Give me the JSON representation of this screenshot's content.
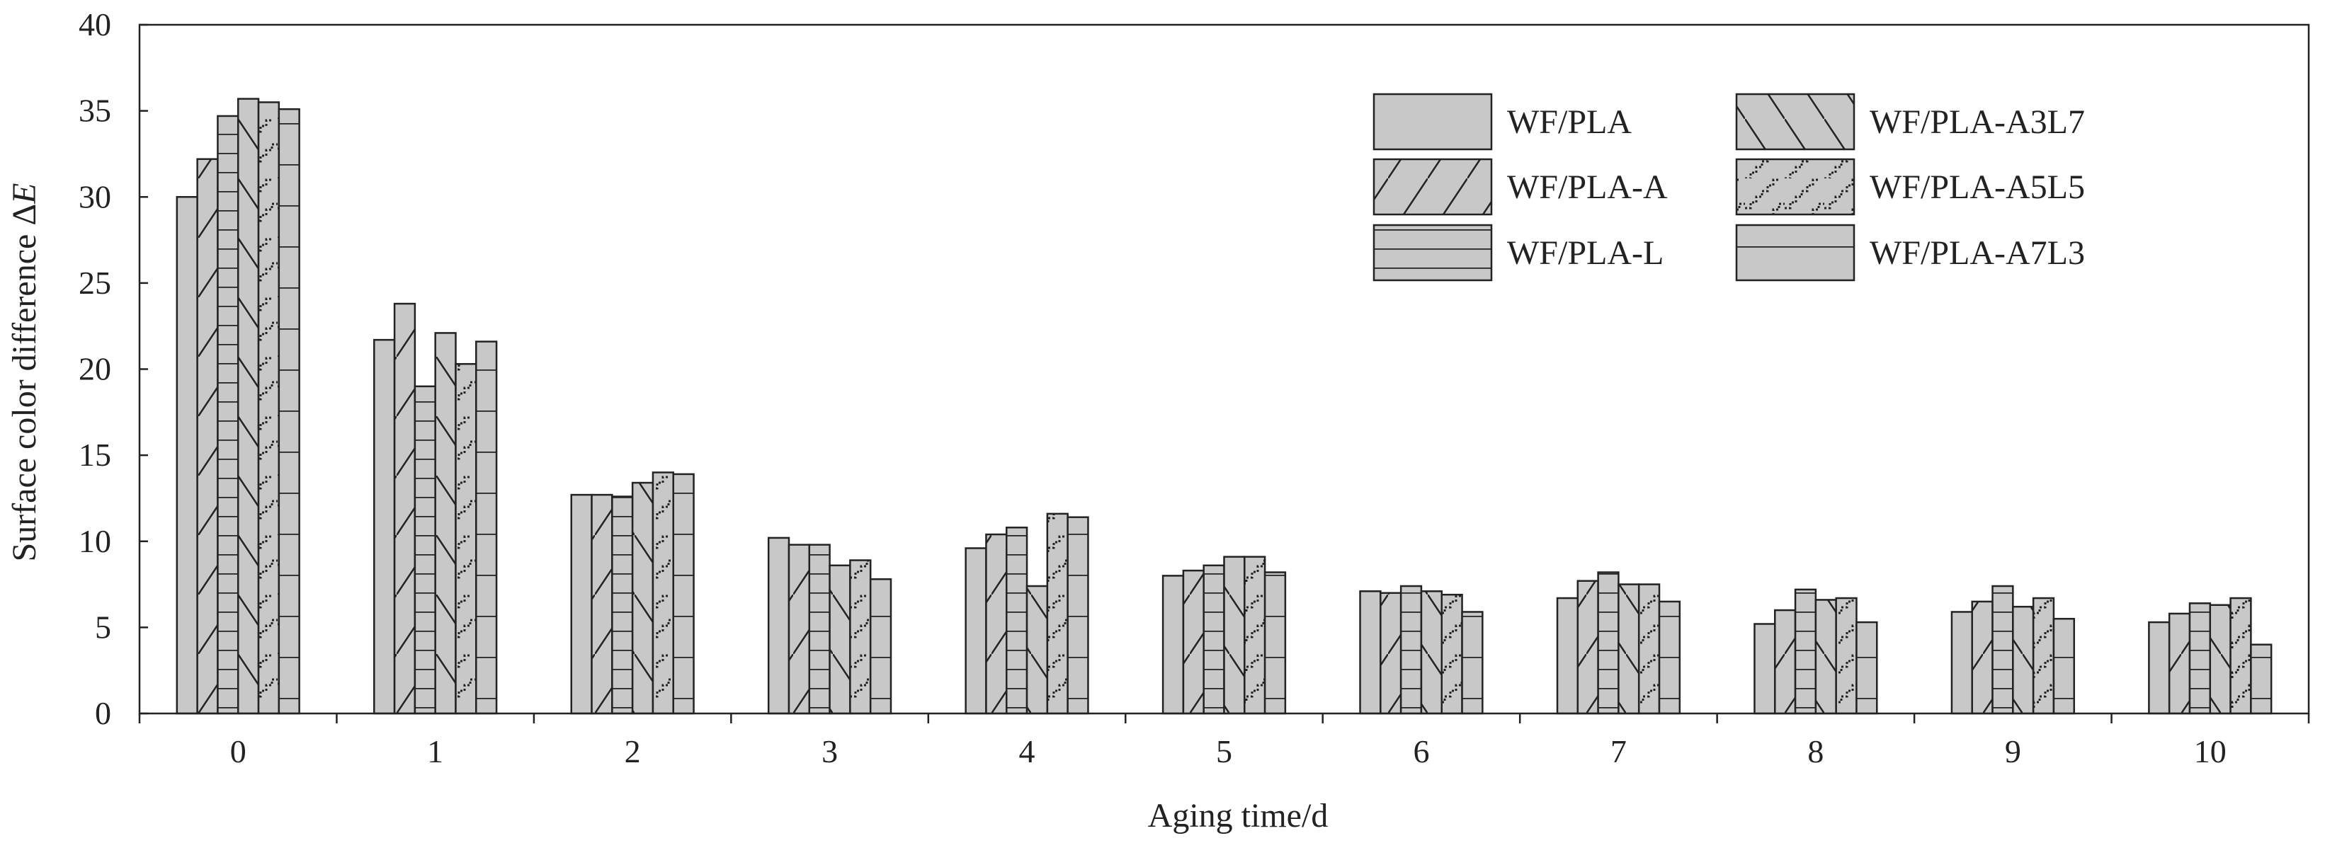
{
  "chart_data": {
    "type": "bar",
    "title": "",
    "xlabel": "Aging time/d",
    "ylabel_prefix": "Surface color difference Δ",
    "ylabel_italic": "E",
    "ylim": [
      0,
      40
    ],
    "yticks": [
      0,
      5,
      10,
      15,
      20,
      25,
      30,
      35,
      40
    ],
    "categories": [
      "0",
      "1",
      "2",
      "3",
      "4",
      "5",
      "6",
      "7",
      "8",
      "9",
      "10"
    ],
    "grid": false,
    "legend_position": "top-right",
    "bar_fill": "#c8c8c8",
    "stroke_color": "#222222",
    "series": [
      {
        "name": "WF/PLA",
        "pattern": "plain",
        "values": [
          30.0,
          21.7,
          12.7,
          10.2,
          9.6,
          8.0,
          7.1,
          6.7,
          5.2,
          5.9,
          5.3
        ]
      },
      {
        "name": "WF/PLA-A",
        "pattern": "forward-slash",
        "values": [
          32.2,
          23.8,
          12.7,
          9.8,
          10.4,
          8.3,
          7.0,
          7.7,
          6.0,
          6.5,
          5.8
        ]
      },
      {
        "name": "WF/PLA-L",
        "pattern": "horizontal",
        "values": [
          34.7,
          19.0,
          12.6,
          9.8,
          10.8,
          8.6,
          7.4,
          8.2,
          7.2,
          7.4,
          6.4
        ]
      },
      {
        "name": "WF/PLA-A3L7",
        "pattern": "back-slash",
        "values": [
          35.7,
          22.1,
          13.4,
          8.6,
          7.4,
          9.1,
          7.1,
          7.5,
          6.6,
          6.2,
          6.3
        ]
      },
      {
        "name": "WF/PLA-A5L5",
        "pattern": "checker",
        "values": [
          35.5,
          20.3,
          14.0,
          8.9,
          11.6,
          9.1,
          6.9,
          7.5,
          6.7,
          6.7,
          6.7
        ]
      },
      {
        "name": "WF/PLA-A7L3",
        "pattern": "sparse-horizontal",
        "values": [
          35.1,
          21.6,
          13.9,
          7.8,
          11.4,
          8.2,
          5.9,
          6.5,
          5.3,
          5.5,
          4.0
        ]
      }
    ]
  }
}
